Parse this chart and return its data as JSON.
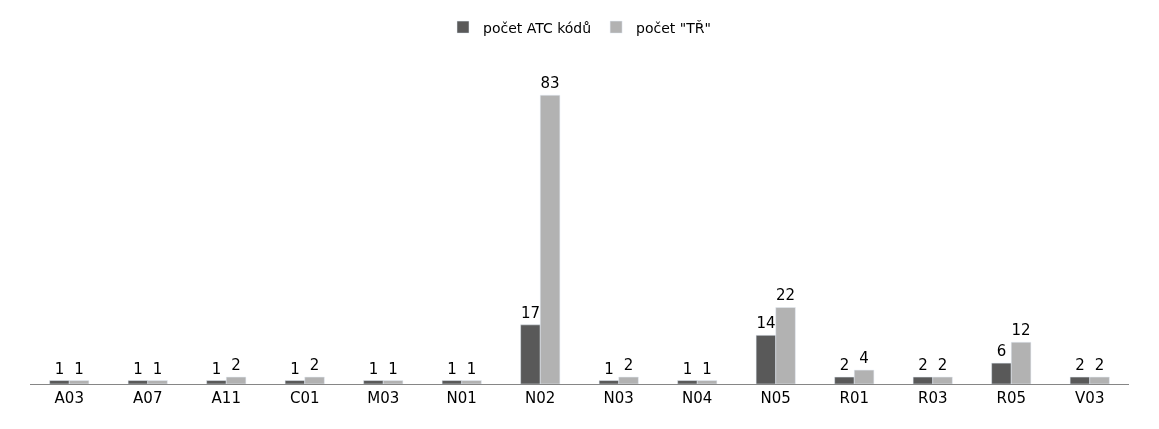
{
  "chart_data": {
    "type": "bar",
    "categories": [
      "A03",
      "A07",
      "A11",
      "C01",
      "M03",
      "N01",
      "N02",
      "N03",
      "N04",
      "N05",
      "R01",
      "R03",
      "R05",
      "V03"
    ],
    "series": [
      {
        "name": "počet ATC kódů",
        "color": "#595959",
        "values": [
          1,
          1,
          1,
          1,
          1,
          1,
          17,
          1,
          1,
          14,
          2,
          2,
          6,
          2
        ]
      },
      {
        "name": "počet \"TŘ\"",
        "color": "#b2b2b2",
        "values": [
          1,
          1,
          2,
          2,
          1,
          1,
          83,
          2,
          1,
          22,
          4,
          2,
          12,
          2
        ]
      }
    ],
    "data_labels": true,
    "legend": "top"
  }
}
